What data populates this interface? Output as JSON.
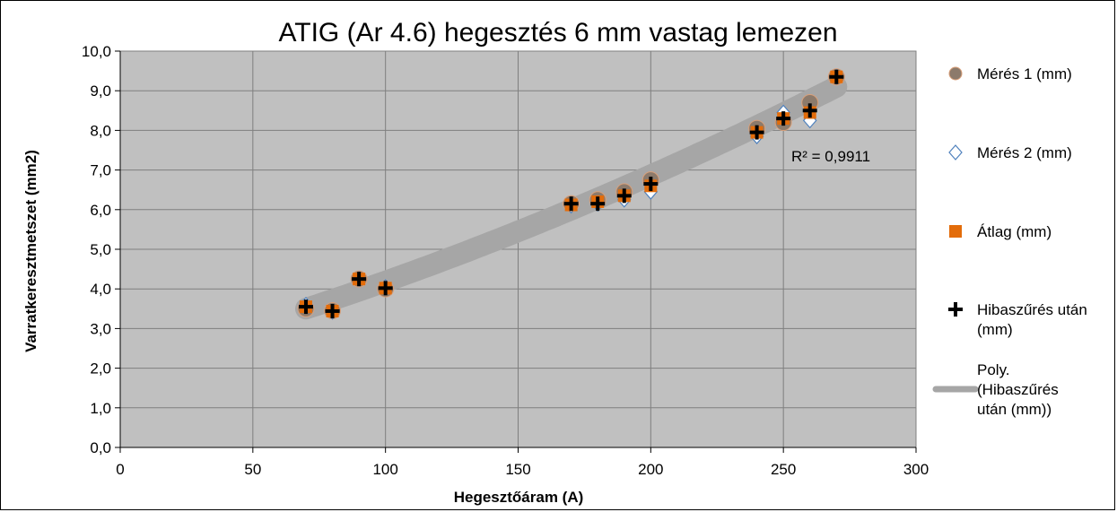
{
  "chart_data": {
    "type": "scatter",
    "title": "ATIG (Ar 4.6) hegesztés 6 mm vastag lemezen",
    "xlabel": "Hegesztőáram (A)",
    "ylabel": "Varratkeresztmetszet (mm2)",
    "xlim": [
      0,
      300
    ],
    "ylim": [
      0,
      10
    ],
    "x_ticks": [
      "0",
      "50",
      "100",
      "150",
      "200",
      "250",
      "300"
    ],
    "y_ticks": [
      "0,0",
      "1,0",
      "2,0",
      "3,0",
      "4,0",
      "5,0",
      "6,0",
      "7,0",
      "8,0",
      "9,0",
      "10,0"
    ],
    "grid": true,
    "legend_position": "right",
    "x": [
      70,
      80,
      90,
      100,
      170,
      180,
      190,
      200,
      240,
      250,
      260,
      270
    ],
    "series": [
      {
        "name": "Mérés 1 (mm)",
        "marker": "circle",
        "color": "#8c7a6b",
        "values": [
          3.5,
          3.45,
          4.25,
          4.0,
          6.15,
          6.25,
          6.45,
          6.75,
          8.05,
          8.2,
          8.7,
          9.35
        ]
      },
      {
        "name": "Mérés 2 (mm)",
        "marker": "diamond",
        "color": "#4f81bd",
        "values": [
          3.6,
          3.42,
          4.25,
          4.05,
          6.1,
          6.15,
          6.25,
          6.45,
          7.85,
          8.45,
          8.25,
          9.35
        ]
      },
      {
        "name": "Átlag (mm)",
        "marker": "square",
        "color": "#e36c0a",
        "values": [
          3.55,
          3.44,
          4.25,
          4.02,
          6.12,
          6.2,
          6.35,
          6.6,
          7.95,
          8.3,
          8.45,
          9.35
        ]
      },
      {
        "name": "Hibaszűrés után (mm)",
        "marker": "plus",
        "color": "#000000",
        "values": [
          3.55,
          3.44,
          4.25,
          4.02,
          6.15,
          6.15,
          6.35,
          6.65,
          7.95,
          8.3,
          8.5,
          9.35
        ]
      }
    ],
    "trendline": {
      "name": "Poly. (Hibaszűrés után (mm))",
      "type": "polynomial",
      "color": "#a6a6a6",
      "x_range": [
        70,
        270
      ],
      "fit_points": [
        [
          70,
          3.5
        ],
        [
          170,
          6.0
        ],
        [
          270,
          9.1
        ]
      ],
      "r2_label": "R² = 0,9911"
    },
    "colors": {
      "plot_background": "#c0c0c0",
      "gridline": "#7f7f7f"
    }
  }
}
